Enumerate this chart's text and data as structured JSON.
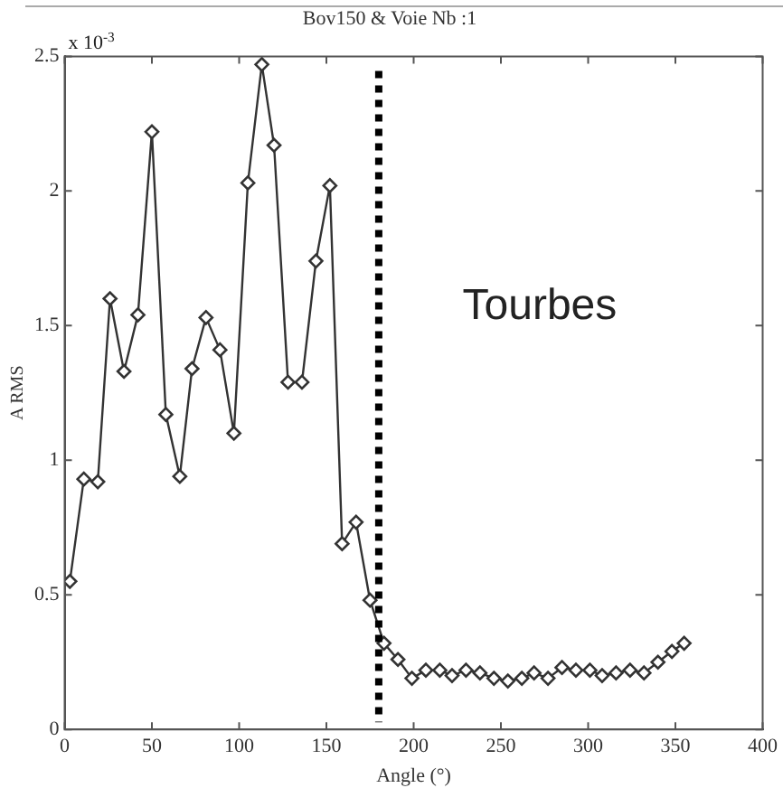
{
  "chart_data": {
    "type": "line",
    "title": "Bov150 & Voie Nb :1",
    "xlabel": "Angle (°)",
    "ylabel": "A RMS",
    "annotations": [
      "x 10$^{-3}$",
      "Tourbes"
    ],
    "x": [
      3,
      11,
      19,
      26,
      34,
      42,
      50,
      58,
      66,
      73,
      81,
      89,
      97,
      105,
      113,
      120,
      128,
      136,
      144,
      152,
      159,
      167,
      175,
      183,
      191,
      199,
      207,
      215,
      222,
      230,
      238,
      246,
      254,
      262,
      269,
      277,
      285,
      293,
      301,
      308,
      316,
      324,
      332,
      340,
      348,
      355
    ],
    "series": [
      {
        "color": "#333333",
        "values": [
          0.55,
          0.93,
          0.92,
          1.6,
          1.33,
          1.54,
          2.22,
          1.17,
          0.94,
          1.34,
          1.53,
          1.41,
          1.1,
          2.03,
          2.47,
          2.17,
          1.29,
          1.29,
          1.74,
          2.02,
          0.69,
          0.77,
          0.48,
          0.32,
          0.26,
          0.19,
          0.22,
          0.22,
          0.2,
          0.22,
          0.21,
          0.19,
          0.18,
          0.19,
          0.21,
          0.19,
          0.23,
          0.22,
          0.22,
          0.2,
          0.21,
          0.22,
          0.21,
          0.25,
          0.29,
          0.32
        ]
      }
    ],
    "xlim": [
      0,
      400
    ],
    "xticks": [
      0,
      50,
      100,
      150,
      200,
      250,
      300,
      350,
      400
    ],
    "ylim": [
      0,
      2.5
    ],
    "yticks": [
      0,
      0.5,
      1,
      1.5,
      2,
      2.5
    ],
    "ref_lines": [
      {
        "axis": "x",
        "value": 180,
        "label": null,
        "color": "#000000",
        "line_style": "dotted"
      }
    ],
    "grid": false,
    "legend": false,
    "marker": "diamond",
    "line_style": "solid"
  }
}
